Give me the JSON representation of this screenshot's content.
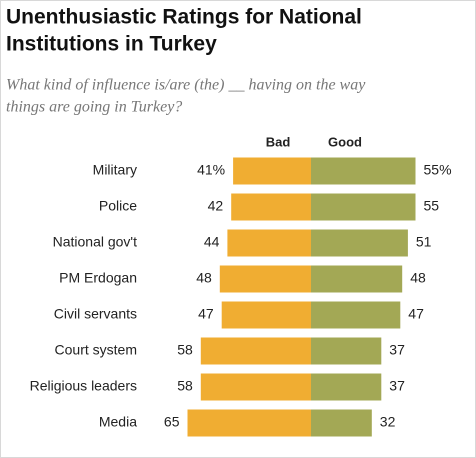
{
  "chart_data": {
    "type": "diverging_bar",
    "title": [
      "Unenthusiastic Ratings for National",
      "Institutions in Turkey"
    ],
    "subtitle": [
      "What kind of influence is/are (the) __ having on the way",
      "things are going in Turkey?"
    ],
    "categories": [
      "Military",
      "Police",
      "National gov't",
      "PM Erdogan",
      "Civil servants",
      "Court system",
      "Religious leaders",
      "Media"
    ],
    "series": [
      {
        "name": "Bad",
        "color": "#f0ad32",
        "values": [
          41,
          42,
          44,
          48,
          47,
          58,
          58,
          65
        ],
        "value_labels": [
          "41%",
          "42",
          "44",
          "48",
          "47",
          "58",
          "58",
          "65"
        ]
      },
      {
        "name": "Good",
        "color": "#a3a855",
        "values": [
          55,
          55,
          51,
          48,
          47,
          37,
          37,
          32
        ],
        "value_labels": [
          "55%",
          "55",
          "51",
          "48",
          "47",
          "37",
          "37",
          "32"
        ]
      }
    ]
  }
}
